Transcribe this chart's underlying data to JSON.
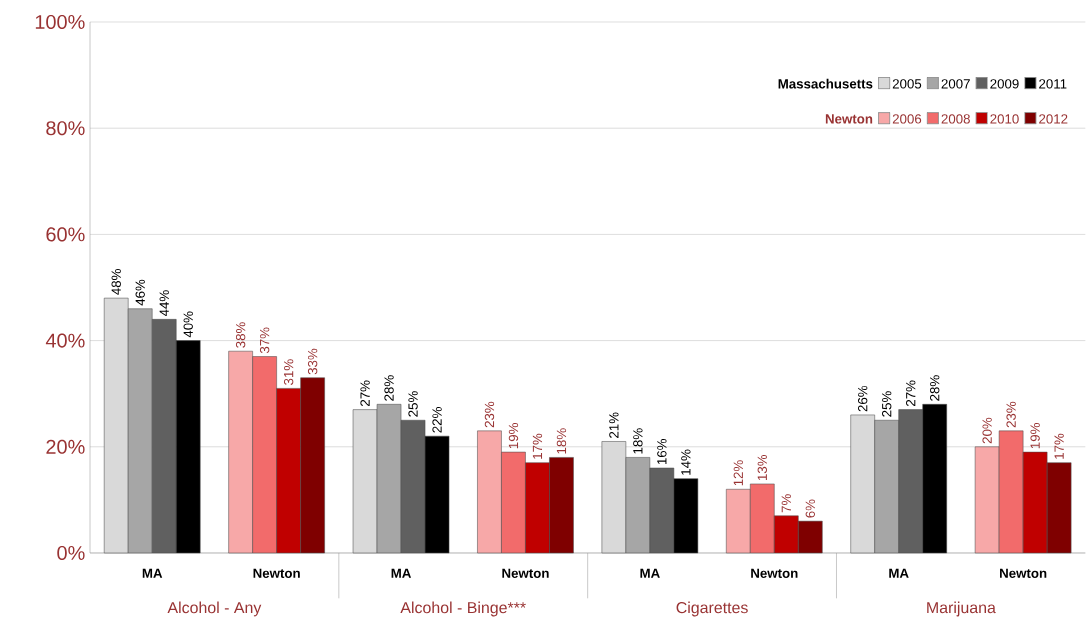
{
  "chart_data": {
    "type": "bar",
    "categories": [
      "MA",
      "Newton",
      "MA",
      "Newton",
      "MA",
      "Newton",
      "MA",
      "Newton"
    ],
    "series": [
      {
        "name": "2005",
        "color": "#d9d9d9",
        "values": [
          48,
          null,
          27,
          null,
          21,
          null,
          26,
          null
        ],
        "value_labels": [
          "48%",
          null,
          "27%",
          null,
          "21%",
          null,
          "26%",
          null
        ]
      },
      {
        "name": "2007",
        "color": "#a6a6a6",
        "values": [
          46,
          null,
          28,
          null,
          18,
          null,
          25,
          null
        ],
        "value_labels": [
          "46%",
          null,
          "28%",
          null,
          "18%",
          null,
          "25%",
          null
        ]
      },
      {
        "name": "2009",
        "color": "#606060",
        "values": [
          44,
          null,
          25,
          null,
          16,
          null,
          27,
          null
        ],
        "value_labels": [
          "44%",
          null,
          "25%",
          null,
          "16%",
          null,
          "27%",
          null
        ]
      },
      {
        "name": "2011",
        "color": "#000000",
        "values": [
          40,
          null,
          22,
          null,
          14,
          null,
          28,
          null
        ],
        "value_labels": [
          "40%",
          null,
          "22%",
          null,
          "14%",
          null,
          "28%",
          null
        ]
      },
      {
        "name": "2006",
        "color": "#f7a8a8",
        "values": [
          null,
          38,
          null,
          23,
          null,
          12,
          null,
          20
        ],
        "value_labels": [
          null,
          "38%",
          null,
          "23%",
          null,
          "12%",
          null,
          "20%"
        ]
      },
      {
        "name": "2008",
        "color": "#f26b6b",
        "values": [
          null,
          37,
          null,
          19,
          null,
          13,
          null,
          23
        ],
        "value_labels": [
          null,
          "37%",
          null,
          "19%",
          null,
          "13%",
          null,
          "23%"
        ]
      },
      {
        "name": "2010",
        "color": "#c00000",
        "values": [
          null,
          31,
          null,
          17,
          null,
          7,
          null,
          19
        ],
        "value_labels": [
          null,
          "31%",
          null,
          "17%",
          null,
          "7%",
          null,
          "19%"
        ]
      },
      {
        "name": "2012",
        "color": "#7f0000",
        "values": [
          null,
          33,
          null,
          18,
          null,
          6,
          null,
          17
        ],
        "value_labels": [
          null,
          "33%",
          null,
          "18%",
          null,
          "6%",
          null,
          "17%"
        ]
      }
    ],
    "annotations": [
      "Massachusetts",
      "Newton",
      "Alcohol - Any",
      "Alcohol - Binge***",
      "Cigarettes",
      "Marijuana"
    ],
    "ylim": [
      0,
      100
    ],
    "yticks": [
      {
        "value": 0,
        "label": "0%"
      },
      {
        "value": 20,
        "label": "20%"
      },
      {
        "value": 40,
        "label": "40%"
      },
      {
        "value": 60,
        "label": "60%"
      },
      {
        "value": 80,
        "label": "80%"
      },
      {
        "value": 100,
        "label": "100%"
      }
    ],
    "grid": "y",
    "legend": "top right"
  }
}
